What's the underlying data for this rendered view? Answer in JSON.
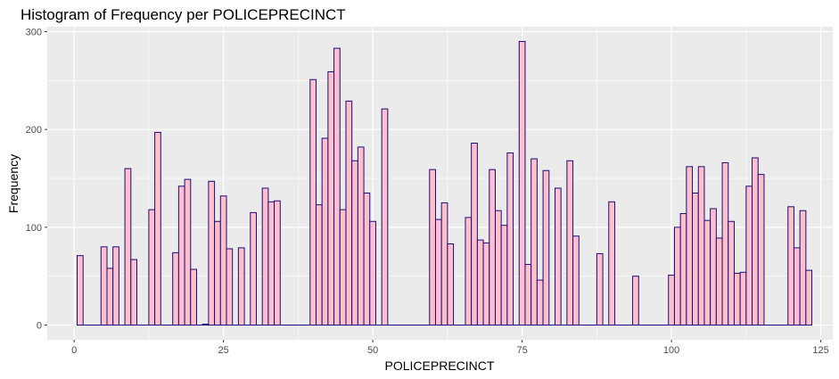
{
  "chart_data": {
    "type": "bar",
    "title": "Histogram of Frequency per POLICEPRECINCT",
    "xlabel": "POLICEPRECINCT",
    "ylabel": "Frequency",
    "xlim": [
      -4.5,
      127
    ],
    "ylim": [
      -15,
      305
    ],
    "x_ticks": [
      0,
      25,
      50,
      75,
      100,
      125
    ],
    "y_ticks": [
      0,
      100,
      200,
      300
    ],
    "grid": true,
    "legend": "none",
    "colors": {
      "fill": "#FFC0CB",
      "outline": "#1B0A7A",
      "panel": "#EBEBEB",
      "grid": "#FFFFFF"
    },
    "x": [
      1,
      5,
      6,
      7,
      9,
      10,
      13,
      14,
      17,
      18,
      19,
      20,
      22,
      23,
      24,
      25,
      26,
      28,
      30,
      32,
      33,
      34,
      40,
      41,
      42,
      43,
      44,
      45,
      46,
      47,
      48,
      49,
      50,
      52,
      60,
      61,
      62,
      63,
      66,
      67,
      68,
      69,
      70,
      71,
      72,
      73,
      75,
      76,
      77,
      78,
      79,
      81,
      83,
      84,
      88,
      90,
      94,
      100,
      101,
      102,
      103,
      104,
      105,
      106,
      107,
      108,
      109,
      110,
      111,
      112,
      113,
      114,
      115,
      120,
      121,
      122,
      123
    ],
    "values": [
      71,
      80,
      58,
      80,
      160,
      67,
      118,
      197,
      74,
      142,
      149,
      57,
      1,
      147,
      106,
      132,
      78,
      79,
      115,
      140,
      126,
      127,
      251,
      123,
      191,
      259,
      283,
      118,
      229,
      168,
      182,
      135,
      106,
      221,
      159,
      108,
      125,
      83,
      110,
      186,
      87,
      84,
      159,
      117,
      102,
      176,
      290,
      62,
      170,
      46,
      158,
      140,
      168,
      91,
      73,
      126,
      50,
      51,
      100,
      114,
      162,
      135,
      162,
      107,
      119,
      89,
      166,
      106,
      53,
      54,
      142,
      171,
      154,
      121,
      79,
      117,
      56
    ]
  }
}
